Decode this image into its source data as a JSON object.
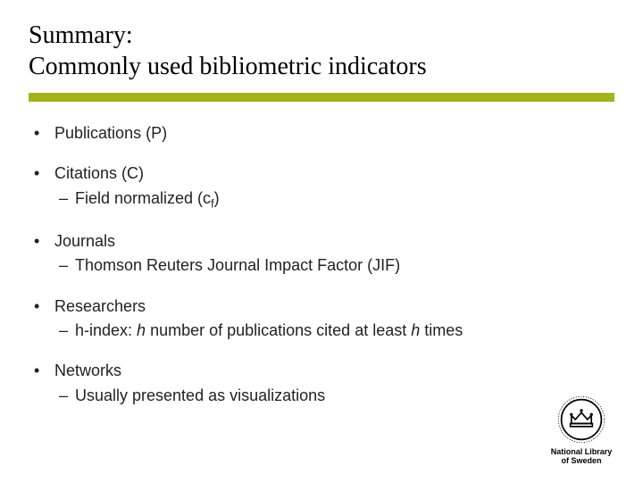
{
  "title_line1": "Summary:",
  "title_line2": "Commonly used bibliometric indicators",
  "divider_color": "#a3b41c",
  "bullets": [
    {
      "text": "Publications (P)"
    },
    {
      "text": "Citations (C)",
      "sub": [
        {
          "html": "Field normalized (c<sub class='f'>f</sub>)"
        }
      ]
    },
    {
      "text": "Journals",
      "sub": [
        {
          "text": "Thomson Reuters Journal Impact Factor (JIF)"
        }
      ]
    },
    {
      "text": "Researchers",
      "sub": [
        {
          "html": "h-index: <span class='italic'>h</span> number of publications cited at least <span class='italic'>h</span> times"
        }
      ]
    },
    {
      "text": "Networks",
      "sub": [
        {
          "text": "Usually presented as visualizations"
        }
      ]
    }
  ],
  "logo": {
    "caption_line1": "National Library",
    "caption_line2": "of Sweden"
  },
  "typography": {
    "title_font": "Georgia, serif",
    "title_size_pt": 28,
    "body_font": "Arial, sans-serif",
    "body_size_pt": 18,
    "body_color": "#222222",
    "background_color": "#ffffff"
  }
}
